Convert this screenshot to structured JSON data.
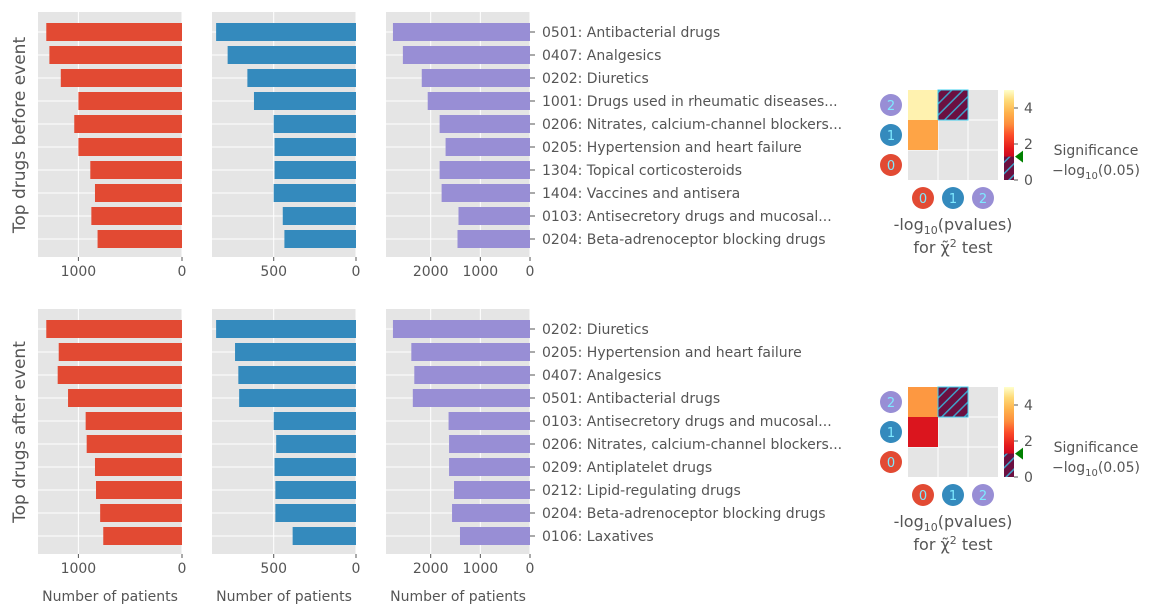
{
  "figure": {
    "ylabel_top": "Top drugs before event",
    "ylabel_bottom": "Top drugs after event",
    "xlabel": "Number of patients",
    "pvalue_label_line1": "-log",
    "pvalue_label_sub": "10",
    "pvalue_label_rest": "(pvalues)",
    "pvalue_label_line2": "for χ̃",
    "pvalue_label_sup": "2",
    "pvalue_label_end": " test",
    "significance_label": "Significance",
    "significance_formula_pre": "−log",
    "significance_formula_sub": "10",
    "significance_formula_post": "(0.05)",
    "cluster_labels": [
      "0",
      "1",
      "2"
    ],
    "colors": {
      "series_red": "#E24A33",
      "series_blue": "#348ABD",
      "series_purple": "#988ED5",
      "panel_bg": "#E5E5E5",
      "grid": "#FFFFFF",
      "text": "#555555",
      "marker_green": "#008000"
    }
  },
  "chart_data": [
    {
      "type": "bar",
      "orientation": "horizontal",
      "panel": "before-event",
      "categories": [
        "0501: Antibacterial drugs",
        "0407: Analgesics",
        "0202: Diuretics",
        "1001: Drugs used in rheumatic diseases...",
        "0206: Nitrates, calcium-channel blockers...",
        "0205: Hypertension and heart failure",
        "1304: Topical corticosteroids",
        "1404: Vaccines and antisera",
        "0103: Antisecretory drugs and mucosal...",
        "0204: Beta-adrenoceptor blocking drugs"
      ],
      "series": [
        {
          "color": "#E24A33",
          "values": [
            1310,
            1280,
            1170,
            1000,
            1040,
            1000,
            885,
            840,
            875,
            815
          ],
          "xlim": [
            1390,
            0
          ],
          "xticks": [
            1000,
            0
          ]
        },
        {
          "color": "#348ABD",
          "values": [
            850,
            780,
            660,
            620,
            500,
            495,
            495,
            500,
            445,
            435
          ],
          "xlim": [
            875,
            0
          ],
          "xticks": [
            500,
            0
          ]
        },
        {
          "color": "#988ED5",
          "values": [
            2760,
            2560,
            2180,
            2060,
            1820,
            1700,
            1820,
            1780,
            1440,
            1460
          ],
          "xlim": [
            2900,
            0
          ],
          "xticks": [
            2000,
            1000,
            0
          ]
        }
      ],
      "xlabel": "Number of patients"
    },
    {
      "type": "bar",
      "orientation": "horizontal",
      "panel": "after-event",
      "categories": [
        "0202: Diuretics",
        "0205: Hypertension and heart failure",
        "0407: Analgesics",
        "0501: Antibacterial drugs",
        "0103: Antisecretory drugs and mucosal...",
        "0206: Nitrates, calcium-channel blockers...",
        "0209: Antiplatelet drugs",
        "0212: Lipid-regulating drugs",
        "0204: Beta-adrenoceptor blocking drugs",
        "0106: Laxatives"
      ],
      "series": [
        {
          "color": "#E24A33",
          "values": [
            1310,
            1190,
            1200,
            1100,
            930,
            920,
            840,
            830,
            790,
            760
          ],
          "xlim": [
            1390,
            0
          ],
          "xticks": [
            1000,
            0
          ]
        },
        {
          "color": "#348ABD",
          "values": [
            850,
            735,
            715,
            710,
            500,
            485,
            495,
            490,
            490,
            385
          ],
          "xlim": [
            875,
            0
          ],
          "xticks": [
            500,
            0
          ]
        },
        {
          "color": "#988ED5",
          "values": [
            2760,
            2390,
            2330,
            2360,
            1640,
            1630,
            1630,
            1530,
            1570,
            1410
          ],
          "xlim": [
            2900,
            0
          ],
          "xticks": [
            2000,
            1000,
            0
          ]
        }
      ],
      "xlabel": "Number of patients"
    },
    {
      "type": "heatmap",
      "panel": "before-event-significance",
      "rows": [
        "2",
        "1",
        "0"
      ],
      "cols": [
        "0",
        "1",
        "2"
      ],
      "values": [
        [
          4.8,
          null,
          null
        ],
        [
          3.5,
          null,
          null
        ],
        [
          null,
          null,
          null
        ]
      ],
      "hatched": [
        [
          false,
          true,
          false
        ],
        [
          false,
          false,
          false
        ],
        [
          false,
          false,
          false
        ]
      ],
      "colorbar": {
        "range": [
          0,
          5
        ],
        "ticks": [
          0,
          2,
          4
        ],
        "marker": 1.3
      }
    },
    {
      "type": "heatmap",
      "panel": "after-event-significance",
      "rows": [
        "2",
        "1",
        "0"
      ],
      "cols": [
        "0",
        "1",
        "2"
      ],
      "values": [
        [
          3.3,
          null,
          null
        ],
        [
          1.6,
          null,
          null
        ],
        [
          null,
          null,
          null
        ]
      ],
      "hatched": [
        [
          false,
          true,
          false
        ],
        [
          false,
          false,
          false
        ],
        [
          false,
          false,
          false
        ]
      ],
      "colorbar": {
        "range": [
          0,
          5
        ],
        "ticks": [
          0,
          2,
          4
        ],
        "marker": 1.3
      }
    }
  ]
}
